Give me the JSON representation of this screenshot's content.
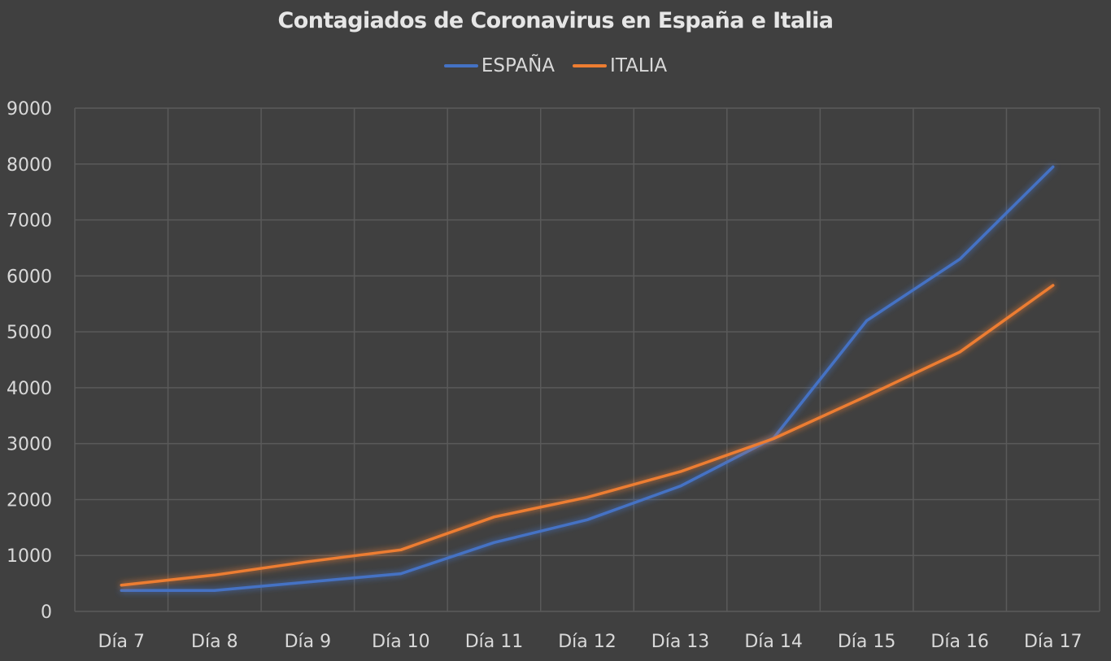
{
  "chart_data": {
    "type": "line",
    "title": "Contagiados de Coronavirus en España e Italia",
    "xlabel": "",
    "ylabel": "",
    "categories": [
      "Día 7",
      "Día 8",
      "Día 9",
      "Día 10",
      "Día 11",
      "Día 12",
      "Día 13",
      "Día 14",
      "Día 15",
      "Día 16",
      "Día 17"
    ],
    "series": [
      {
        "name": "ESPAÑA",
        "color": "#4472c4",
        "values": [
          374,
          374,
          525,
          674,
          1231,
          1639,
          2240,
          3100,
          5200,
          6300,
          7950
        ]
      },
      {
        "name": "ITALIA",
        "color": "#ed7d31",
        "values": [
          470,
          650,
          890,
          1100,
          1690,
          2040,
          2500,
          3090,
          3850,
          4640,
          5830
        ]
      }
    ],
    "ylim": [
      0,
      9000
    ],
    "yticks": [
      0,
      1000,
      2000,
      3000,
      4000,
      5000,
      6000,
      7000,
      8000,
      9000
    ],
    "grid": true,
    "legend_position": "top"
  }
}
